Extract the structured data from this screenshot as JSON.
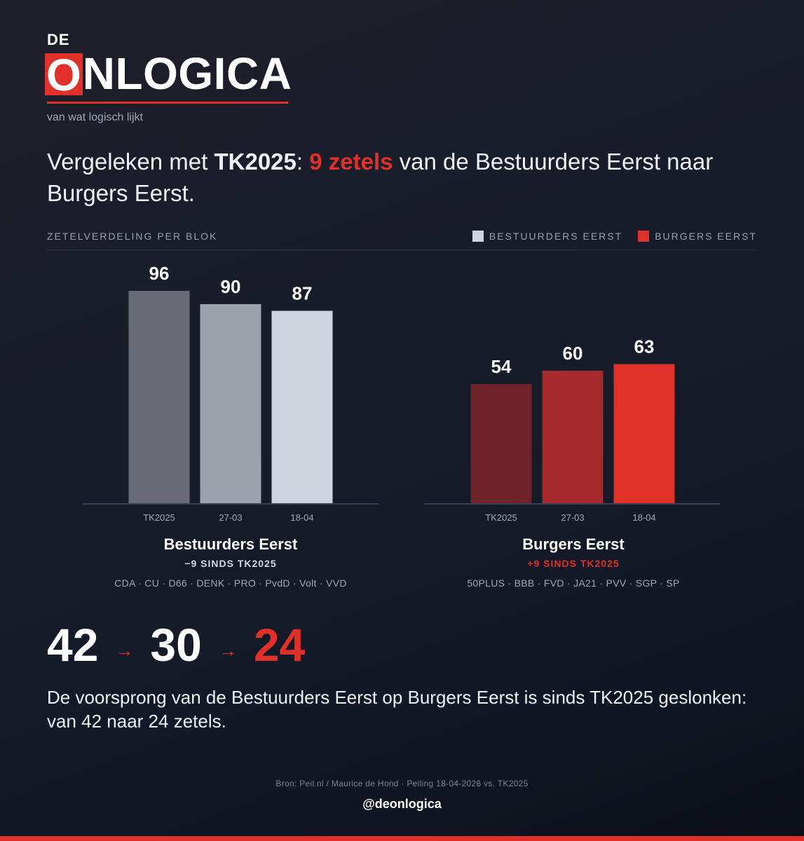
{
  "brand": {
    "prefix": "DE",
    "logo_first_letter": "O",
    "logo_rest": "NLOGICA",
    "tagline": "van wat logisch lijkt"
  },
  "headline": {
    "part1": "Vergeleken met ",
    "bold": "TK2025",
    "part2": ": ",
    "highlight": "9 zetels",
    "part3": " van de Bestuurders Eerst naar Burgers Eerst."
  },
  "section_label": "ZETELVERDELING PER BLOK",
  "legend": [
    {
      "label": "BESTUURDERS EERST",
      "color": "#cfd5df"
    },
    {
      "label": "BURGERS EERST",
      "color": "#e0302a"
    }
  ],
  "chart_data": [
    {
      "type": "bar",
      "title": "Bestuurders Eerst",
      "categories": [
        "TK2025",
        "27-03",
        "18-04"
      ],
      "values": [
        96,
        90,
        87
      ],
      "colors": [
        "#686b76",
        "#9ea2ac",
        "#cfd5df"
      ],
      "ylim": [
        0,
        96
      ],
      "grid": false
    },
    {
      "type": "bar",
      "title": "Burgers Eerst",
      "categories": [
        "TK2025",
        "27-03",
        "18-04"
      ],
      "values": [
        54,
        60,
        63
      ],
      "colors": [
        "#6e222a",
        "#a42a2c",
        "#e0302a"
      ],
      "ylim": [
        0,
        96
      ],
      "grid": false
    }
  ],
  "groups": [
    {
      "title": "Bestuurders Eerst",
      "change": "−9 SINDS TK2025",
      "change_color": "#d5d8df",
      "parties": "CDA · CU · D66 · DENK · PRO · PvdD · Volt · VVD"
    },
    {
      "title": "Burgers Eerst",
      "change": "+9 SINDS TK2025",
      "change_color": "#e0302a",
      "parties": "50PLUS · BBB · FVD · JA21 · PVV · SGP · SP"
    }
  ],
  "lead": {
    "values": [
      "42",
      "30",
      "24"
    ],
    "arrow": "→",
    "last_color": "#e0302a"
  },
  "conclusion": "De voorsprong van de Bestuurders Eerst op Burgers Eerst is sinds TK2025 geslonken: van 42 naar 24 zetels.",
  "source": "Bron: Peil.nl / Maurice de Hond  ·  Peiling 18-04-2026 vs. TK2025",
  "handle": "@deonlogica",
  "colors": {
    "accent": "#e0302a",
    "background": "#161a27"
  }
}
